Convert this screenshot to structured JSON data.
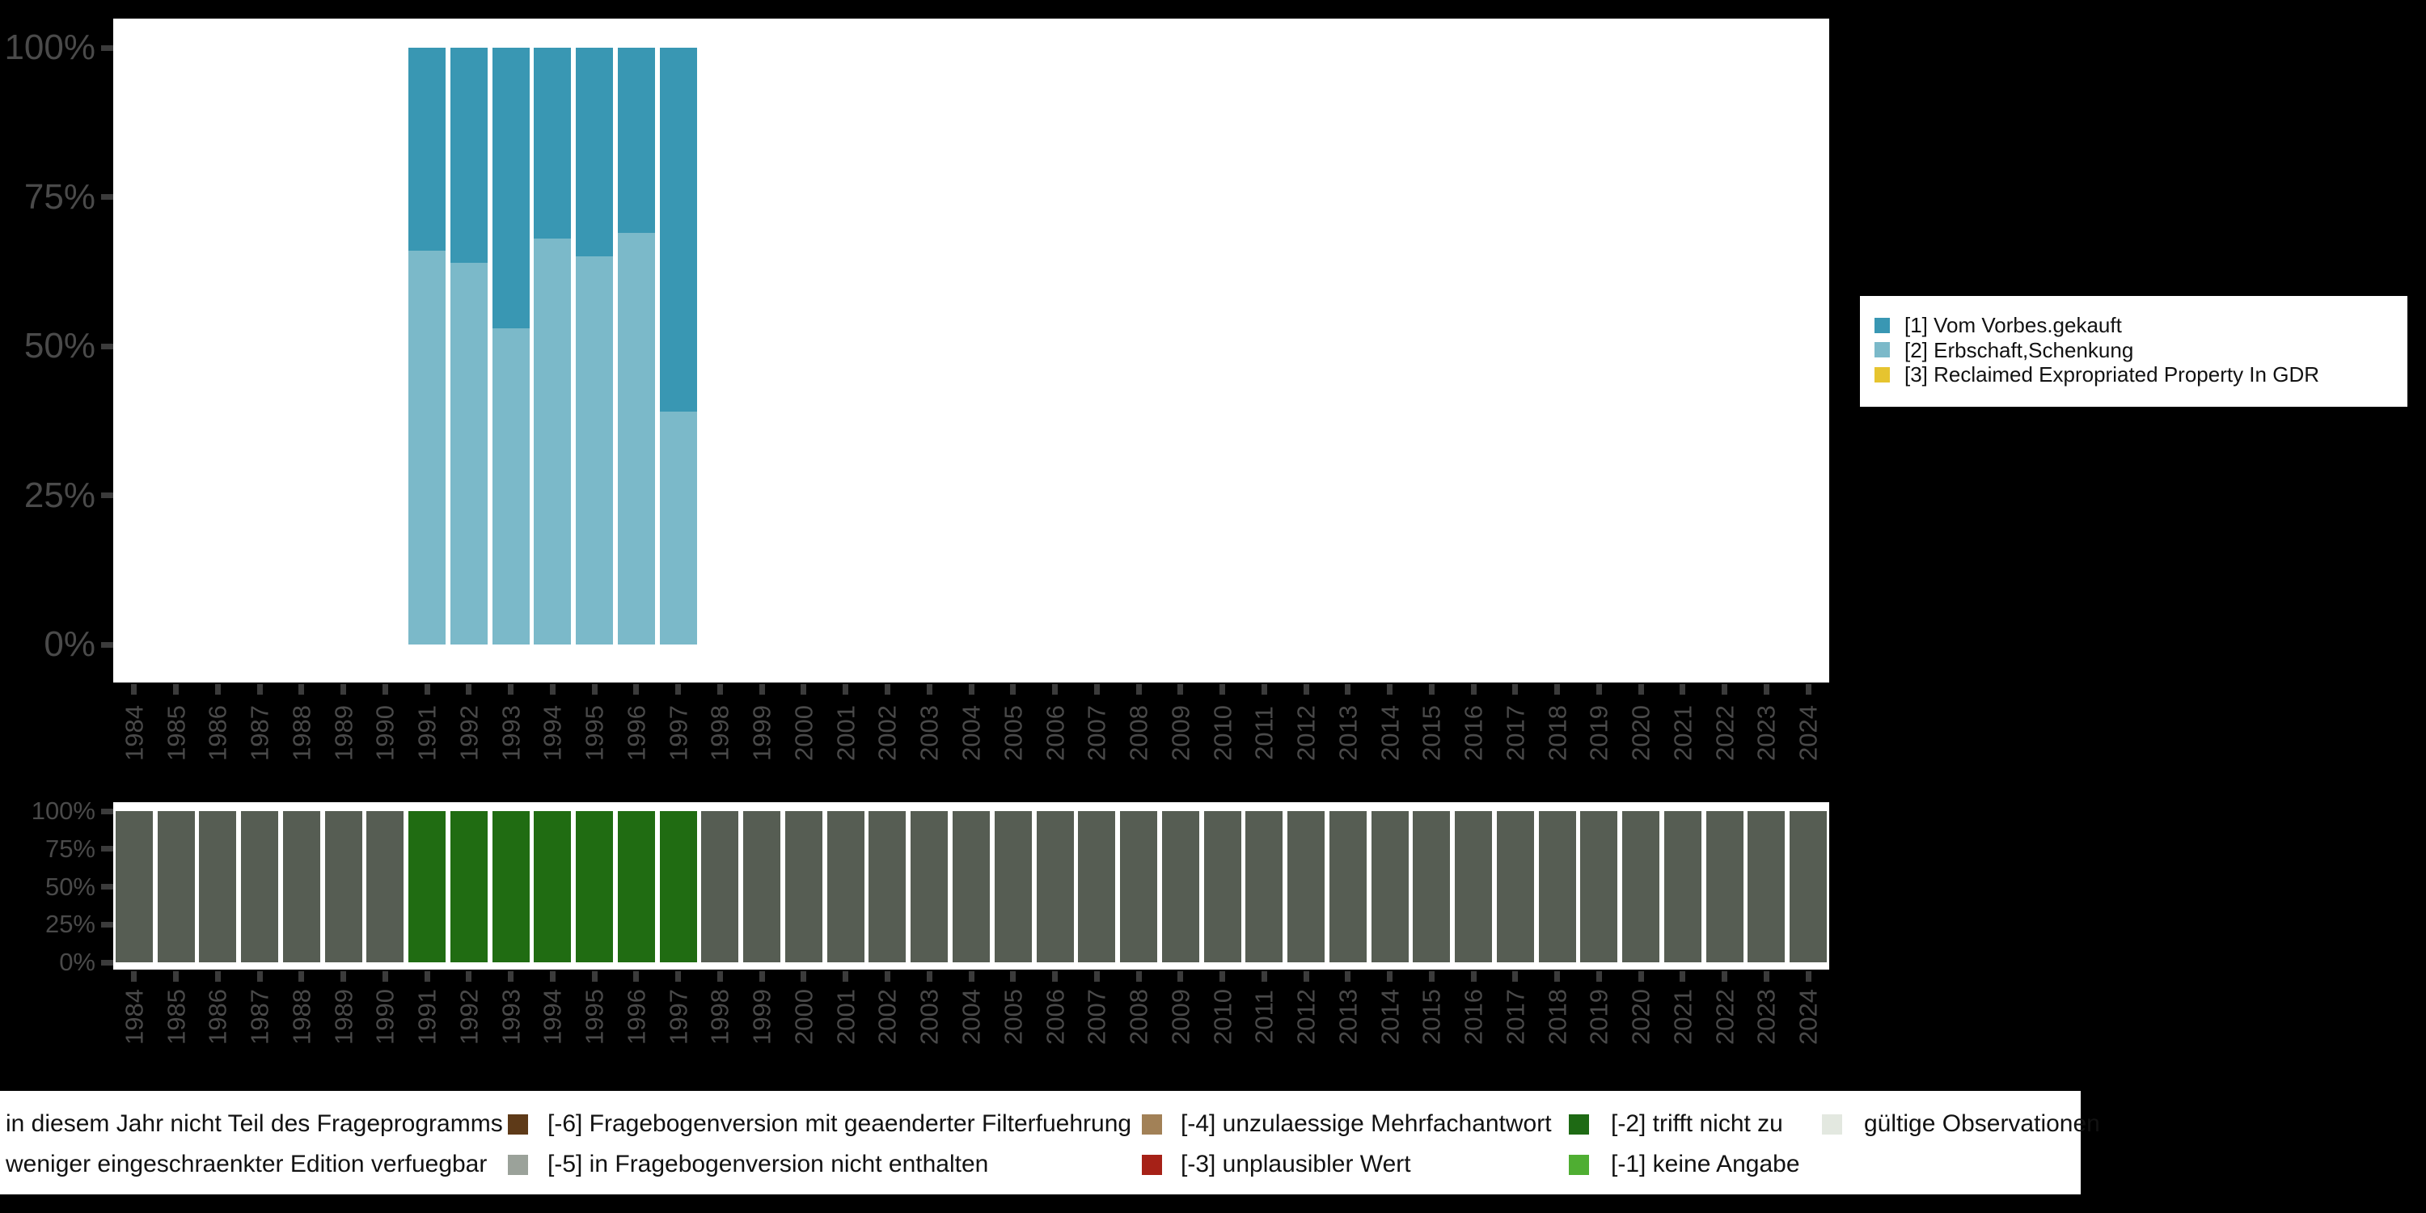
{
  "background_color": "#000000",
  "plot_background_color": "#FFFFFF",
  "axis_text_color": "#4A4A4A",
  "tick_color": "#3B3B3B",
  "chart_data": [
    {
      "type": "bar",
      "stacked": true,
      "title": "",
      "xlabel": "",
      "ylabel": "",
      "ylim": [
        0,
        100
      ],
      "yticks": [
        "100%",
        "75%",
        "50%",
        "25%",
        "0%"
      ],
      "grid": false,
      "legend_position": "right",
      "categories": [
        "1984",
        "1985",
        "1986",
        "1987",
        "1988",
        "1989",
        "1990",
        "1991",
        "1992",
        "1993",
        "1994",
        "1995",
        "1996",
        "1997",
        "1998",
        "1999",
        "2000",
        "2001",
        "2002",
        "2003",
        "2004",
        "2005",
        "2006",
        "2007",
        "2008",
        "2009",
        "2010",
        "2011",
        "2012",
        "2013",
        "2014",
        "2015",
        "2016",
        "2017",
        "2018",
        "2019",
        "2020",
        "2021",
        "2022",
        "2023",
        "2024"
      ],
      "series": [
        {
          "name": "[1] Vom Vorbes.gekauft",
          "color": "#3997B3",
          "values": {
            "1991": 34,
            "1992": 36,
            "1993": 47,
            "1994": 32,
            "1995": 35,
            "1996": 31,
            "1997": 61
          }
        },
        {
          "name": "[2] Erbschaft,Schenkung",
          "color": "#7BB9C9",
          "values": {
            "1991": 66,
            "1992": 64,
            "1993": 53,
            "1994": 68,
            "1995": 65,
            "1996": 69,
            "1997": 39
          }
        },
        {
          "name": "[3] Reclaimed Expropriated Property In GDR",
          "color": "#E6C42F",
          "values": {}
        }
      ],
      "stack_order": [
        "[2] Erbschaft,Schenkung",
        "[1] Vom Vorbes.gekauft",
        "[3] Reclaimed Expropriated Property In GDR"
      ]
    },
    {
      "type": "bar",
      "stacked": false,
      "title": "",
      "ylim": [
        0,
        100
      ],
      "yticks": [
        "100%",
        "75%",
        "50%",
        "25%",
        "0%"
      ],
      "categories": [
        "1984",
        "1985",
        "1986",
        "1987",
        "1988",
        "1989",
        "1990",
        "1991",
        "1992",
        "1993",
        "1994",
        "1995",
        "1996",
        "1997",
        "1998",
        "1999",
        "2000",
        "2001",
        "2002",
        "2003",
        "2004",
        "2005",
        "2006",
        "2007",
        "2008",
        "2009",
        "2010",
        "2011",
        "2012",
        "2013",
        "2014",
        "2015",
        "2016",
        "2017",
        "2018",
        "2019",
        "2020",
        "2021",
        "2022",
        "2023",
        "2024"
      ],
      "value_all": 100,
      "default_color": "#565D53",
      "highlight_color": "#206C12",
      "highlight_years": [
        "1991",
        "1992",
        "1993",
        "1994",
        "1995",
        "1996",
        "1997"
      ]
    }
  ],
  "top_legend": {
    "entries": [
      {
        "label": "[1] Vom Vorbes.gekauft",
        "color": "#3997B3"
      },
      {
        "label": "[2] Erbschaft,Schenkung",
        "color": "#7BB9C9"
      },
      {
        "label": "[3] Reclaimed Expropriated Property In GDR",
        "color": "#E6C42F"
      }
    ]
  },
  "missing_legend": {
    "entries": [
      {
        "col": 0,
        "row": 0,
        "label": "in diesem Jahr nicht Teil des Frageprogramms",
        "color": null
      },
      {
        "col": 0,
        "row": 1,
        "label": "weniger eingeschraenkter Edition verfuegbar",
        "color": null
      },
      {
        "col": 1,
        "row": 0,
        "label": "[-6] Fragebogenversion mit geaenderter Filterfuehrung",
        "color": "#5E3A18"
      },
      {
        "col": 1,
        "row": 1,
        "label": "[-5] in Fragebogenversion nicht enthalten",
        "color": "#9BA29A"
      },
      {
        "col": 2,
        "row": 0,
        "label": "[-4] unzulaessige Mehrfachantwort",
        "color": "#A28157"
      },
      {
        "col": 2,
        "row": 1,
        "label": "[-3] unplausibler Wert",
        "color": "#A62117"
      },
      {
        "col": 3,
        "row": 0,
        "label": "[-2] trifft nicht zu",
        "color": "#1E6A14"
      },
      {
        "col": 3,
        "row": 1,
        "label": "[-1] keine Angabe",
        "color": "#4FAE32"
      },
      {
        "col": 4,
        "row": 0,
        "label": "gültige Observationen",
        "color": "#E3E8E0"
      }
    ]
  }
}
